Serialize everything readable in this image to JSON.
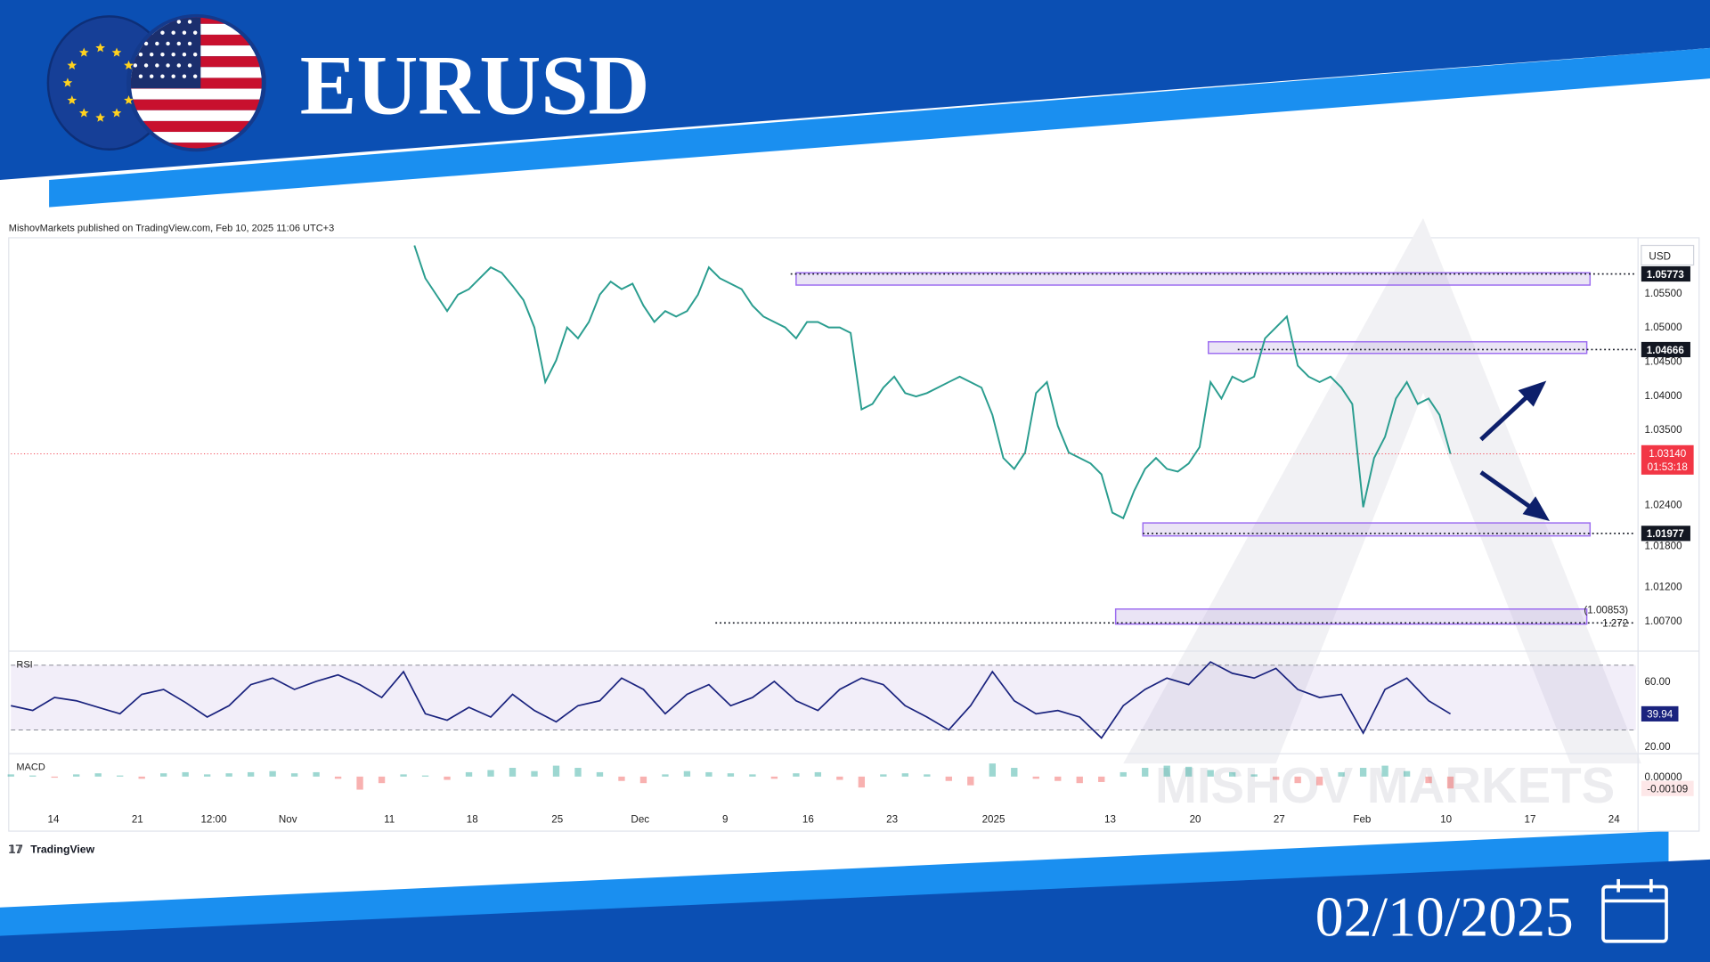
{
  "header": {
    "title": "EURUSD",
    "date": "02/10/2025"
  },
  "branding": {
    "watermark": "MISHOV MARKETS",
    "platform": "TradingView"
  },
  "chart_data": [
    {
      "type": "line",
      "subtitle": "MishovMarkets published on TradingView.com, Feb 10, 2025 11:06 UTC+3",
      "currency": "USD",
      "color": "#2a9d8f",
      "x": [
        37,
        38,
        39,
        40,
        41,
        42,
        43,
        44,
        45,
        46,
        47,
        48,
        49,
        50,
        51,
        52,
        53,
        54,
        55,
        56,
        57,
        58,
        59,
        60,
        61,
        62,
        63,
        64,
        65,
        66,
        67,
        68,
        69,
        70,
        71,
        72,
        73,
        74,
        75,
        76,
        77,
        78,
        79,
        80,
        81,
        82,
        83,
        84,
        85,
        86,
        87,
        88,
        89,
        90,
        91,
        92,
        93,
        94,
        95,
        96,
        97,
        98,
        99,
        100,
        101,
        102,
        103,
        104,
        105,
        106,
        107,
        108,
        109,
        110,
        111,
        112,
        113,
        114,
        115,
        116,
        117,
        118,
        119,
        120,
        121,
        122,
        123,
        124,
        125,
        126,
        127,
        128,
        129,
        130,
        131,
        132
      ],
      "values": [
        1.0619,
        1.0571,
        1.0547,
        1.0523,
        1.0547,
        1.0555,
        1.0571,
        1.0587,
        1.0579,
        1.056,
        1.0539,
        1.0499,
        1.0419,
        1.0451,
        1.0499,
        1.0483,
        1.0507,
        1.0547,
        1.0566,
        1.0555,
        1.0563,
        1.0531,
        1.0507,
        1.0523,
        1.0515,
        1.0523,
        1.0547,
        1.0587,
        1.0571,
        1.0563,
        1.0555,
        1.0531,
        1.0515,
        1.0507,
        1.0499,
        1.0483,
        1.0507,
        1.0507,
        1.0499,
        1.0499,
        1.0491,
        1.0379,
        1.0387,
        1.0411,
        1.0427,
        1.0403,
        1.0398,
        1.0403,
        1.0411,
        1.0419,
        1.0427,
        1.0419,
        1.0411,
        1.0371,
        1.0308,
        1.0292,
        1.0316,
        1.0403,
        1.0419,
        1.0355,
        1.0316,
        1.0308,
        1.03,
        1.0284,
        1.0228,
        1.022,
        1.026,
        1.0292,
        1.0308,
        1.0292,
        1.0288,
        1.03,
        1.0324,
        1.0419,
        1.0395,
        1.0427,
        1.0419,
        1.0427,
        1.0483,
        1.0499,
        1.0515,
        1.0443,
        1.0427,
        1.0419,
        1.0427,
        1.0411,
        1.0387,
        1.0236,
        1.0308,
        1.0339,
        1.0395,
        1.0419,
        1.0387,
        1.0395,
        1.0371,
        1.0314
      ],
      "xlim": [
        0,
        149
      ],
      "xticks": [
        {
          "value": 3.9,
          "label": "14"
        },
        {
          "value": 11.6,
          "label": "21"
        },
        {
          "value": 18.6,
          "label": "12:00"
        },
        {
          "value": 25.4,
          "label": "Nov"
        },
        {
          "value": 34.7,
          "label": "11"
        },
        {
          "value": 42.3,
          "label": "18"
        },
        {
          "value": 50.1,
          "label": "25"
        },
        {
          "value": 57.7,
          "label": "Dec"
        },
        {
          "value": 65.5,
          "label": "9"
        },
        {
          "value": 73.1,
          "label": "16"
        },
        {
          "value": 80.8,
          "label": "23"
        },
        {
          "value": 90.1,
          "label": "2025"
        },
        {
          "value": 100.8,
          "label": "13"
        },
        {
          "value": 108.6,
          "label": "20"
        },
        {
          "value": 116.3,
          "label": "27"
        },
        {
          "value": 123.9,
          "label": "Feb"
        },
        {
          "value": 131.6,
          "label": "10"
        },
        {
          "value": 139.3,
          "label": "17"
        },
        {
          "value": 147.0,
          "label": "24"
        }
      ],
      "ylim": [
        1.0027,
        1.0627
      ],
      "yticks": [
        {
          "value": 1.055,
          "label": "1.05500"
        },
        {
          "value": 1.05,
          "label": "1.05000"
        },
        {
          "value": 1.045,
          "label": "1.04500"
        },
        {
          "value": 1.04,
          "label": "1.04000"
        },
        {
          "value": 1.035,
          "label": "1.03500"
        },
        {
          "value": 1.024,
          "label": "1.02400"
        },
        {
          "value": 1.018,
          "label": "1.01800"
        },
        {
          "value": 1.012,
          "label": "1.01200"
        },
        {
          "value": 1.007,
          "label": "1.00700"
        }
      ],
      "levels": [
        {
          "value": 1.05773,
          "label": "1.05773",
          "x_start": 71.5
        },
        {
          "value": 1.04666,
          "label": "1.04666",
          "x_start": 112.5
        },
        {
          "value": 1.01977,
          "label": "1.01977",
          "x_start": 103.8
        },
        {
          "value": 1.00667,
          "label": null,
          "x_start": 64.6
        }
      ],
      "zones": [
        {
          "top": 1.0579,
          "bottom": 1.0561,
          "x_start": 72,
          "x_end": 144.8
        },
        {
          "top": 1.0478,
          "bottom": 1.0461,
          "x_start": 109.8,
          "x_end": 144.5
        },
        {
          "top": 1.0213,
          "bottom": 1.0194,
          "x_start": 103.8,
          "x_end": 144.8
        },
        {
          "top": 1.0087,
          "bottom": 1.0065,
          "x_start": 101.3,
          "x_end": 144.5
        }
      ],
      "last_price": {
        "value": 1.0314,
        "label": "1.03140"
      },
      "countdown": "01:53:18",
      "fib": {
        "value": 1.00853,
        "label": "(1.00853)",
        "ratio": 1.272
      }
    },
    {
      "type": "line",
      "title": "RSI",
      "color": "#1a237e",
      "x": [
        0,
        2,
        4,
        6,
        8,
        10,
        12,
        14,
        16,
        18,
        20,
        22,
        24,
        26,
        28,
        30,
        32,
        34,
        36,
        38,
        40,
        42,
        44,
        46,
        48,
        50,
        52,
        54,
        56,
        58,
        60,
        62,
        64,
        66,
        68,
        70,
        72,
        74,
        76,
        78,
        80,
        82,
        84,
        86,
        88,
        90,
        92,
        94,
        96,
        98,
        100,
        102,
        104,
        106,
        108,
        110,
        112,
        114,
        116,
        118,
        120,
        122,
        124,
        126,
        128,
        130,
        132
      ],
      "values": [
        45,
        42,
        50,
        48,
        44,
        40,
        52,
        55,
        47,
        38,
        45,
        58,
        62,
        55,
        60,
        64,
        58,
        50,
        66,
        40,
        36,
        44,
        38,
        52,
        42,
        35,
        45,
        48,
        62,
        55,
        40,
        52,
        58,
        45,
        50,
        60,
        48,
        42,
        55,
        62,
        58,
        45,
        38,
        30,
        45,
        66,
        48,
        40,
        42,
        38,
        25,
        45,
        55,
        62,
        58,
        72,
        65,
        62,
        68,
        55,
        50,
        52,
        28,
        55,
        62,
        48,
        39.94
      ],
      "xlim": [
        0,
        149
      ],
      "ylim": [
        16,
        78
      ],
      "yticks": [
        {
          "value": 20,
          "label": "20.00"
        },
        {
          "value": 60,
          "label": "60.00"
        }
      ],
      "band": [
        30,
        70
      ]
    },
    {
      "type": "bar",
      "title": "MACD",
      "colors": {
        "positive": "#26a69a",
        "negative": "#ef5350"
      },
      "x": [
        0,
        2,
        4,
        6,
        8,
        10,
        12,
        14,
        16,
        18,
        20,
        22,
        24,
        26,
        28,
        30,
        32,
        34,
        36,
        38,
        40,
        42,
        44,
        46,
        48,
        50,
        52,
        54,
        56,
        58,
        60,
        62,
        64,
        66,
        68,
        70,
        72,
        74,
        76,
        78,
        80,
        82,
        84,
        86,
        88,
        90,
        92,
        94,
        96,
        98,
        100,
        102,
        104,
        106,
        108,
        110,
        112,
        114,
        116,
        118,
        120,
        122,
        124,
        126,
        128,
        130,
        132
      ],
      "values": [
        0.0002,
        0.0001,
        -0.0001,
        0.0002,
        0.0003,
        0.0001,
        -0.0002,
        0.0003,
        0.0004,
        0.0002,
        0.0003,
        0.0004,
        0.0005,
        0.0003,
        0.0004,
        -0.0002,
        -0.0012,
        -0.0006,
        0.0002,
        0.0001,
        -0.0003,
        0.0004,
        0.0006,
        0.0008,
        0.0005,
        0.001,
        0.0008,
        0.0004,
        -0.0004,
        -0.0006,
        0.0002,
        0.0005,
        0.0004,
        0.0003,
        0.0002,
        -0.0002,
        0.0003,
        0.0004,
        -0.0003,
        -0.001,
        0.0002,
        0.0003,
        0.0002,
        -0.0004,
        -0.0008,
        0.0012,
        0.0008,
        -0.0002,
        -0.0004,
        -0.0006,
        -0.0005,
        0.0004,
        0.0008,
        0.001,
        0.0009,
        0.0006,
        0.0004,
        0.0002,
        -0.0003,
        -0.0006,
        -0.0008,
        0.0004,
        0.0008,
        0.001,
        0.0005,
        -0.0006,
        -0.00109
      ],
      "xlim": [
        0,
        149
      ],
      "ylim": [
        -0.0028,
        0.002
      ],
      "yticks": [
        {
          "value": 0,
          "label": "0.00000"
        }
      ],
      "last": {
        "value": -0.00109,
        "label": "-0.00109"
      }
    }
  ]
}
